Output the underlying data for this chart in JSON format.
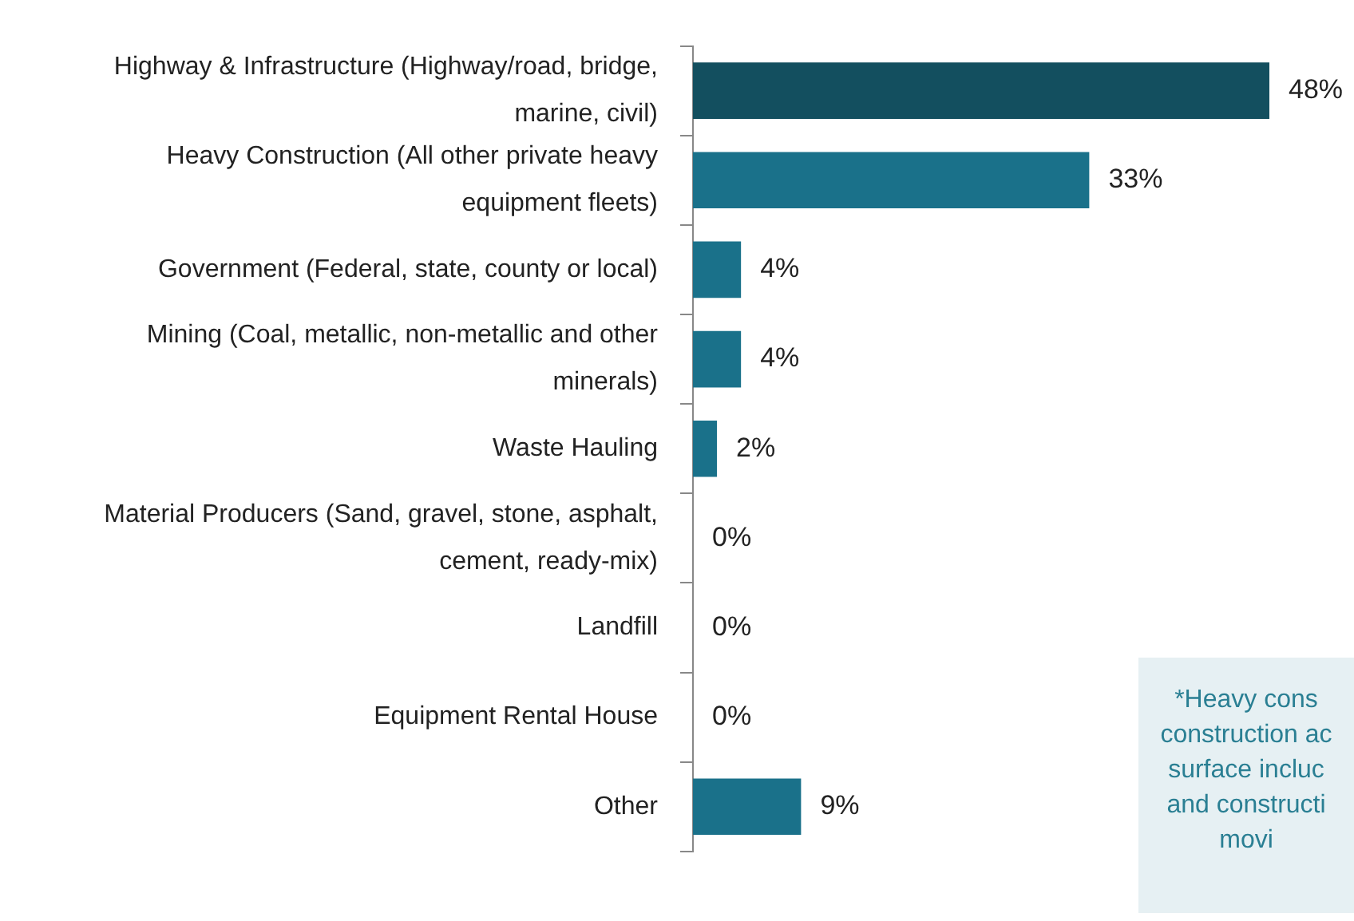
{
  "chart_data": {
    "type": "bar",
    "orientation": "horizontal",
    "categories": [
      "Highway & Infrastructure (Highway/road, bridge, marine, civil)",
      "Heavy Construction (All other private heavy equipment fleets)",
      "Government (Federal, state, county or local)",
      "Mining (Coal, metallic, non-metallic and other minerals)",
      "Waste Hauling",
      "Material Producers (Sand, gravel, stone, asphalt, cement, ready-mix)",
      "Landfill",
      "Equipment Rental House",
      "Other"
    ],
    "values": [
      48,
      33,
      4,
      4,
      2,
      0,
      0,
      0,
      9
    ],
    "colors": [
      "#134f5f",
      "#1a718a",
      "#1a718a",
      "#1a718a",
      "#1a718a",
      "#1a718a",
      "#1a718a",
      "#1a718a",
      "#1a718a"
    ],
    "value_labels": [
      "48%",
      "33%",
      "4%",
      "4%",
      "2%",
      "0%",
      "0%",
      "0%",
      "9%"
    ],
    "grid": false,
    "legend": false,
    "annotations": [
      "*Heavy cons\nconstruction ac\nsurface incluc\nand constructi\nmovi"
    ]
  }
}
